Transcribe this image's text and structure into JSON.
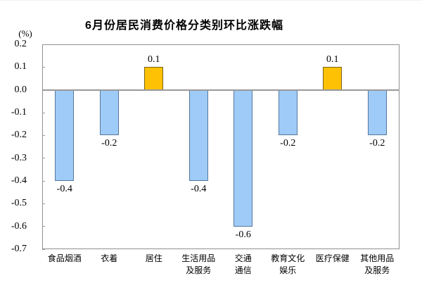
{
  "chart_data": {
    "type": "bar",
    "title": "6月份居民消费价格分类别环比涨跌幅",
    "unit": "(%)",
    "categories": [
      "食品烟酒",
      "衣着",
      "居住",
      "生活用品\n及服务",
      "交通\n通信",
      "教育文化\n娱乐",
      "医疗保健",
      "其他用品\n及服务"
    ],
    "values": [
      -0.4,
      -0.2,
      0.1,
      -0.4,
      -0.6,
      -0.2,
      0.1,
      -0.2
    ],
    "data_labels": [
      "-0.4",
      "-0.2",
      "0.1",
      "-0.4",
      "-0.6",
      "-0.2",
      "0.1",
      "-0.2"
    ],
    "ylim": [
      -0.7,
      0.2
    ],
    "ytick_labels": [
      "0.2",
      "0.1",
      "0.0",
      "-0.1",
      "-0.2",
      "-0.3",
      "-0.4",
      "-0.5",
      "-0.6",
      "-0.7"
    ],
    "grid": false,
    "legend": "none",
    "colors": {
      "positive_fill": "#FFC103",
      "positive_border": "#7a6418",
      "negative_fill": "#9ECBF7",
      "negative_border": "#55779c",
      "axis_border": "#8f8f8f",
      "zero_line": "#999999",
      "text": "#000000"
    }
  }
}
